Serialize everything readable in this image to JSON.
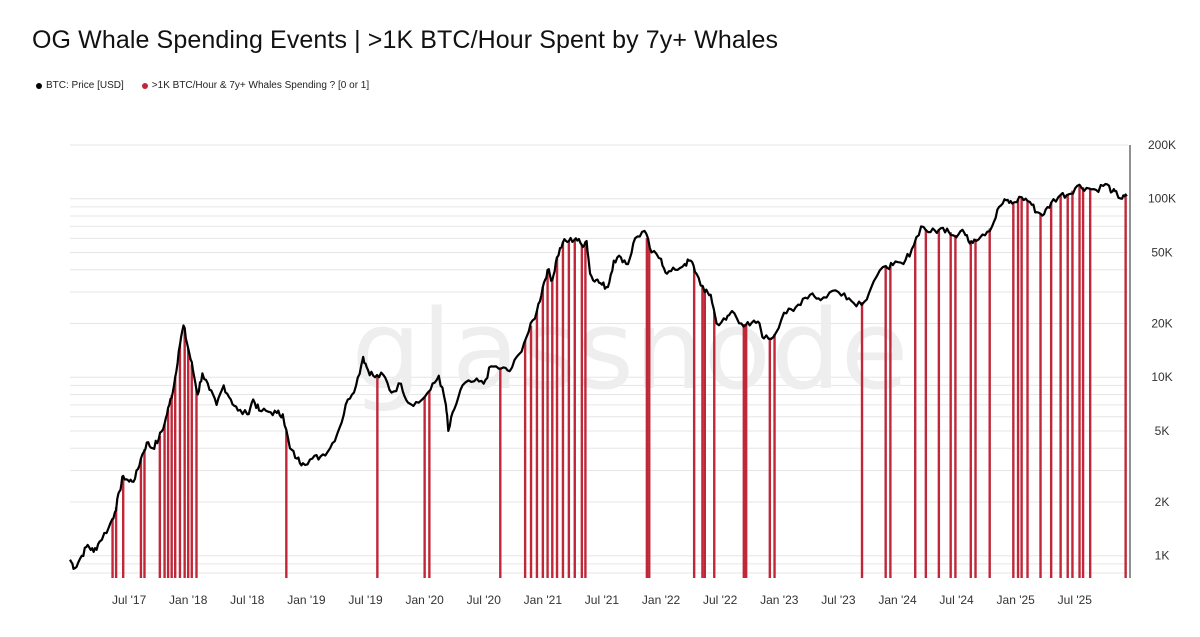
{
  "title": "OG Whale Spending Events | >1K BTC/Hour Spent by 7y+ Whales",
  "watermark": "glassnode",
  "colors": {
    "price": "#000000",
    "spend": "#c0283a",
    "grid": "#e6e6e6"
  },
  "legend": [
    {
      "label": "BTC: Price [USD]",
      "color": "#000000"
    },
    {
      "label": ">1K BTC/Hour & 7y+ Whales Spending ? [0 or 1]",
      "color": "#c0283a"
    }
  ],
  "chart_data": {
    "type": "line",
    "yscale": "log",
    "ylim": [
      750,
      200000
    ],
    "xlim": [
      2017.0,
      2025.95
    ],
    "yticks": [
      {
        "v": 1000,
        "label": "1K"
      },
      {
        "v": 2000,
        "label": "2K"
      },
      {
        "v": 5000,
        "label": "5K"
      },
      {
        "v": 10000,
        "label": "10K"
      },
      {
        "v": 20000,
        "label": "20K"
      },
      {
        "v": 50000,
        "label": "50K"
      },
      {
        "v": 100000,
        "label": "100K"
      },
      {
        "v": 200000,
        "label": "200K"
      }
    ],
    "xticks": [
      {
        "t": 2017.5,
        "label": "Jul '17"
      },
      {
        "t": 2018.0,
        "label": "Jan '18"
      },
      {
        "t": 2018.5,
        "label": "Jul '18"
      },
      {
        "t": 2019.0,
        "label": "Jan '19"
      },
      {
        "t": 2019.5,
        "label": "Jul '19"
      },
      {
        "t": 2020.0,
        "label": "Jan '20"
      },
      {
        "t": 2020.5,
        "label": "Jul '20"
      },
      {
        "t": 2021.0,
        "label": "Jan '21"
      },
      {
        "t": 2021.5,
        "label": "Jul '21"
      },
      {
        "t": 2022.0,
        "label": "Jan '22"
      },
      {
        "t": 2022.5,
        "label": "Jul '22"
      },
      {
        "t": 2023.0,
        "label": "Jan '23"
      },
      {
        "t": 2023.5,
        "label": "Jul '23"
      },
      {
        "t": 2024.0,
        "label": "Jan '24"
      },
      {
        "t": 2024.5,
        "label": "Jul '24"
      },
      {
        "t": 2025.0,
        "label": "Jan '25"
      },
      {
        "t": 2025.5,
        "label": "Jul '25"
      }
    ],
    "price_series": {
      "name": "BTC: Price [USD]",
      "points": [
        [
          2017.0,
          950
        ],
        [
          2017.04,
          850
        ],
        [
          2017.1,
          1000
        ],
        [
          2017.15,
          1150
        ],
        [
          2017.2,
          1050
        ],
        [
          2017.25,
          1200
        ],
        [
          2017.33,
          1450
        ],
        [
          2017.38,
          1750
        ],
        [
          2017.42,
          2300
        ],
        [
          2017.45,
          2800
        ],
        [
          2017.5,
          2600
        ],
        [
          2017.55,
          2700
        ],
        [
          2017.6,
          3500
        ],
        [
          2017.65,
          4300
        ],
        [
          2017.7,
          4000
        ],
        [
          2017.75,
          4500
        ],
        [
          2017.8,
          5500
        ],
        [
          2017.84,
          7000
        ],
        [
          2017.88,
          9000
        ],
        [
          2017.92,
          14000
        ],
        [
          2017.96,
          19500
        ],
        [
          2018.0,
          14500
        ],
        [
          2018.04,
          11000
        ],
        [
          2018.08,
          8000
        ],
        [
          2018.12,
          10500
        ],
        [
          2018.18,
          8500
        ],
        [
          2018.24,
          7000
        ],
        [
          2018.3,
          9000
        ],
        [
          2018.36,
          7500
        ],
        [
          2018.42,
          6500
        ],
        [
          2018.5,
          6200
        ],
        [
          2018.55,
          7500
        ],
        [
          2018.6,
          6500
        ],
        [
          2018.68,
          6400
        ],
        [
          2018.75,
          6300
        ],
        [
          2018.8,
          6200
        ],
        [
          2018.86,
          4000
        ],
        [
          2018.92,
          3500
        ],
        [
          2018.97,
          3300
        ],
        [
          2019.05,
          3500
        ],
        [
          2019.12,
          3600
        ],
        [
          2019.2,
          4000
        ],
        [
          2019.28,
          5200
        ],
        [
          2019.35,
          7500
        ],
        [
          2019.42,
          9000
        ],
        [
          2019.48,
          13000
        ],
        [
          2019.52,
          11000
        ],
        [
          2019.58,
          10000
        ],
        [
          2019.65,
          10300
        ],
        [
          2019.72,
          8200
        ],
        [
          2019.8,
          9200
        ],
        [
          2019.86,
          7200
        ],
        [
          2019.95,
          7200
        ],
        [
          2020.05,
          8500
        ],
        [
          2020.12,
          10200
        ],
        [
          2020.18,
          7000
        ],
        [
          2020.2,
          5000
        ],
        [
          2020.25,
          6600
        ],
        [
          2020.32,
          9000
        ],
        [
          2020.42,
          9500
        ],
        [
          2020.5,
          9200
        ],
        [
          2020.56,
          11500
        ],
        [
          2020.65,
          11200
        ],
        [
          2020.72,
          10800
        ],
        [
          2020.8,
          13500
        ],
        [
          2020.88,
          18000
        ],
        [
          2020.95,
          23500
        ],
        [
          2021.0,
          32000
        ],
        [
          2021.04,
          40000
        ],
        [
          2021.08,
          35000
        ],
        [
          2021.12,
          47000
        ],
        [
          2021.17,
          57000
        ],
        [
          2021.22,
          58000
        ],
        [
          2021.28,
          60000
        ],
        [
          2021.33,
          55000
        ],
        [
          2021.37,
          58000
        ],
        [
          2021.4,
          38000
        ],
        [
          2021.45,
          35000
        ],
        [
          2021.5,
          33000
        ],
        [
          2021.55,
          32000
        ],
        [
          2021.6,
          45000
        ],
        [
          2021.66,
          47000
        ],
        [
          2021.72,
          43000
        ],
        [
          2021.78,
          60000
        ],
        [
          2021.86,
          66000
        ],
        [
          2021.92,
          50000
        ],
        [
          2022.0,
          46000
        ],
        [
          2022.05,
          38000
        ],
        [
          2022.12,
          40000
        ],
        [
          2022.2,
          43000
        ],
        [
          2022.25,
          45000
        ],
        [
          2022.3,
          38000
        ],
        [
          2022.37,
          30000
        ],
        [
          2022.42,
          29000
        ],
        [
          2022.47,
          20000
        ],
        [
          2022.55,
          21000
        ],
        [
          2022.6,
          23500
        ],
        [
          2022.68,
          20000
        ],
        [
          2022.75,
          19500
        ],
        [
          2022.82,
          20500
        ],
        [
          2022.87,
          16500
        ],
        [
          2022.95,
          16800
        ],
        [
          2023.04,
          23000
        ],
        [
          2023.12,
          23500
        ],
        [
          2023.2,
          27500
        ],
        [
          2023.28,
          29500
        ],
        [
          2023.35,
          27000
        ],
        [
          2023.45,
          30500
        ],
        [
          2023.55,
          29500
        ],
        [
          2023.63,
          26000
        ],
        [
          2023.72,
          26500
        ],
        [
          2023.8,
          34500
        ],
        [
          2023.9,
          42000
        ],
        [
          2023.96,
          42500
        ],
        [
          2024.05,
          43000
        ],
        [
          2024.12,
          52000
        ],
        [
          2024.2,
          70000
        ],
        [
          2024.28,
          65000
        ],
        [
          2024.35,
          67000
        ],
        [
          2024.42,
          68000
        ],
        [
          2024.48,
          62000
        ],
        [
          2024.55,
          67000
        ],
        [
          2024.6,
          58000
        ],
        [
          2024.65,
          59000
        ],
        [
          2024.72,
          63000
        ],
        [
          2024.8,
          70000
        ],
        [
          2024.86,
          90000
        ],
        [
          2024.92,
          98000
        ],
        [
          2024.97,
          94000
        ],
        [
          2025.05,
          102000
        ],
        [
          2025.12,
          96000
        ],
        [
          2025.18,
          84000
        ],
        [
          2025.24,
          82000
        ],
        [
          2025.3,
          95000
        ],
        [
          2025.38,
          105000
        ],
        [
          2025.45,
          106000
        ],
        [
          2025.52,
          118000
        ],
        [
          2025.6,
          115000
        ],
        [
          2025.68,
          112000
        ],
        [
          2025.76,
          121000
        ],
        [
          2025.82,
          110000
        ],
        [
          2025.86,
          105000
        ],
        [
          2025.9,
          100000
        ],
        [
          2025.94,
          103000
        ]
      ]
    },
    "spend_series": {
      "name": ">1K BTC/Hour & 7y+ Whales Spending ? [0 or 1]",
      "event_dates": [
        2017.36,
        2017.39,
        2017.45,
        2017.6,
        2017.63,
        2017.76,
        2017.8,
        2017.83,
        2017.86,
        2017.89,
        2017.93,
        2017.97,
        2018.0,
        2018.03,
        2018.07,
        2018.83,
        2019.6,
        2020.0,
        2020.04,
        2020.64,
        2020.85,
        2020.9,
        2020.95,
        2021.0,
        2021.04,
        2021.08,
        2021.12,
        2021.17,
        2021.22,
        2021.27,
        2021.33,
        2021.36,
        2021.88,
        2021.9,
        2022.28,
        2022.35,
        2022.37,
        2022.45,
        2022.7,
        2022.72,
        2022.92,
        2022.96,
        2023.7,
        2023.9,
        2023.94,
        2024.15,
        2024.24,
        2024.35,
        2024.45,
        2024.49,
        2024.62,
        2024.66,
        2024.78,
        2024.98,
        2025.02,
        2025.05,
        2025.1,
        2025.21,
        2025.3,
        2025.38,
        2025.44,
        2025.48,
        2025.54,
        2025.57,
        2025.63,
        2025.93
      ]
    }
  }
}
